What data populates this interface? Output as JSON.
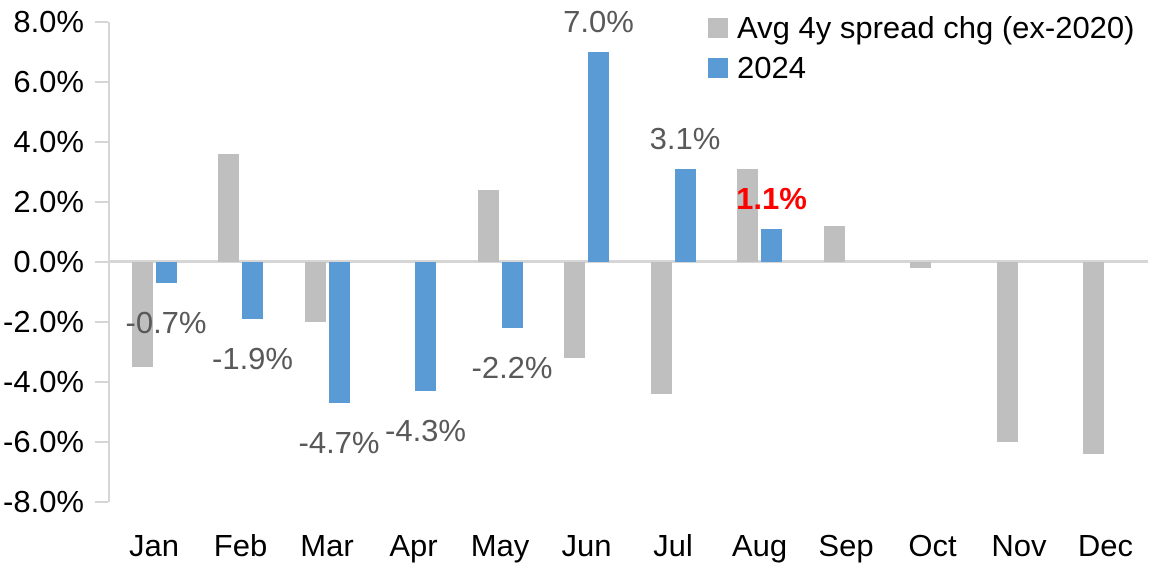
{
  "chart_data": {
    "type": "bar",
    "title": "",
    "xlabel": "",
    "ylabel": "",
    "categories": [
      "Jan",
      "Feb",
      "Mar",
      "Apr",
      "May",
      "Jun",
      "Jul",
      "Aug",
      "Sep",
      "Oct",
      "Nov",
      "Dec"
    ],
    "y_axis": {
      "tick_labels": [
        "8.0%",
        "6.0%",
        "4.0%",
        "2.0%",
        "0.0%",
        "-2.0%",
        "-4.0%",
        "-6.0%",
        "-8.0%"
      ],
      "min": -8,
      "max": 8,
      "step": 2,
      "unit": "%"
    },
    "grid": false,
    "legend_position": "top-right",
    "series": [
      {
        "name": "Avg 4y spread chg (ex-2020)",
        "color": "#bfbfbf",
        "values": [
          -3.5,
          3.6,
          -2.0,
          0.0,
          2.4,
          -3.2,
          -4.4,
          3.1,
          1.2,
          -0.2,
          -6.0,
          -6.4
        ]
      },
      {
        "name": "2024",
        "color": "#5b9bd5",
        "values": [
          -0.7,
          -1.9,
          -4.7,
          -4.3,
          -2.2,
          7.0,
          3.1,
          1.1,
          null,
          null,
          null,
          null
        ],
        "data_labels": [
          {
            "text": "-0.7%",
            "color": "#595959",
            "bold": false
          },
          {
            "text": "-1.9%",
            "color": "#595959",
            "bold": false
          },
          {
            "text": "-4.7%",
            "color": "#595959",
            "bold": false
          },
          {
            "text": "-4.3%",
            "color": "#595959",
            "bold": false
          },
          {
            "text": "-2.2%",
            "color": "#595959",
            "bold": false
          },
          {
            "text": "7.0%",
            "color": "#595959",
            "bold": false
          },
          {
            "text": "3.1%",
            "color": "#595959",
            "bold": false
          },
          {
            "text": "1.1%",
            "color": "#ff0000",
            "bold": true
          },
          null,
          null,
          null,
          null
        ]
      }
    ],
    "colors": {
      "axis": "#d6d6d6",
      "zero_line": "#d6d6d6",
      "label_default": "#595959",
      "label_highlight": "#ff0000",
      "tick_text": "#000000"
    }
  }
}
